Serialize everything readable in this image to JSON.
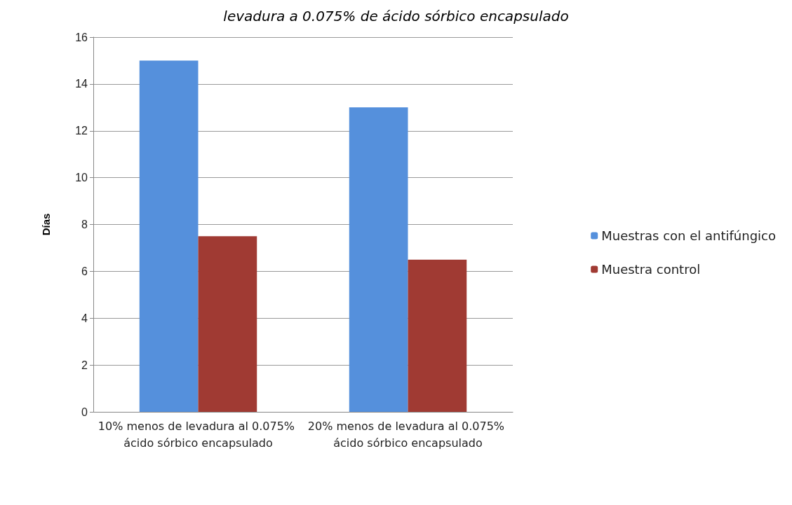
{
  "chart_data": {
    "type": "bar",
    "title": "levadura a 0.075% de ácido sórbico encapsulado",
    "ylabel": "Días",
    "categories": [
      "10% menos de levadura al 0.075% ácido sórbico encapsulado",
      "20% menos de levadura al 0.075% ácido sórbico encapsulado"
    ],
    "series": [
      {
        "name": "Muestras con el antifúngico",
        "color": "#5590dc",
        "values": [
          15,
          13
        ]
      },
      {
        "name": "Muestra control",
        "color": "#a03a33",
        "values": [
          7.5,
          6.5
        ]
      }
    ],
    "ylim": [
      0,
      16
    ],
    "yticks": [
      0,
      2,
      4,
      6,
      8,
      10,
      12,
      14,
      16
    ],
    "grid": "y",
    "legend": "right"
  }
}
